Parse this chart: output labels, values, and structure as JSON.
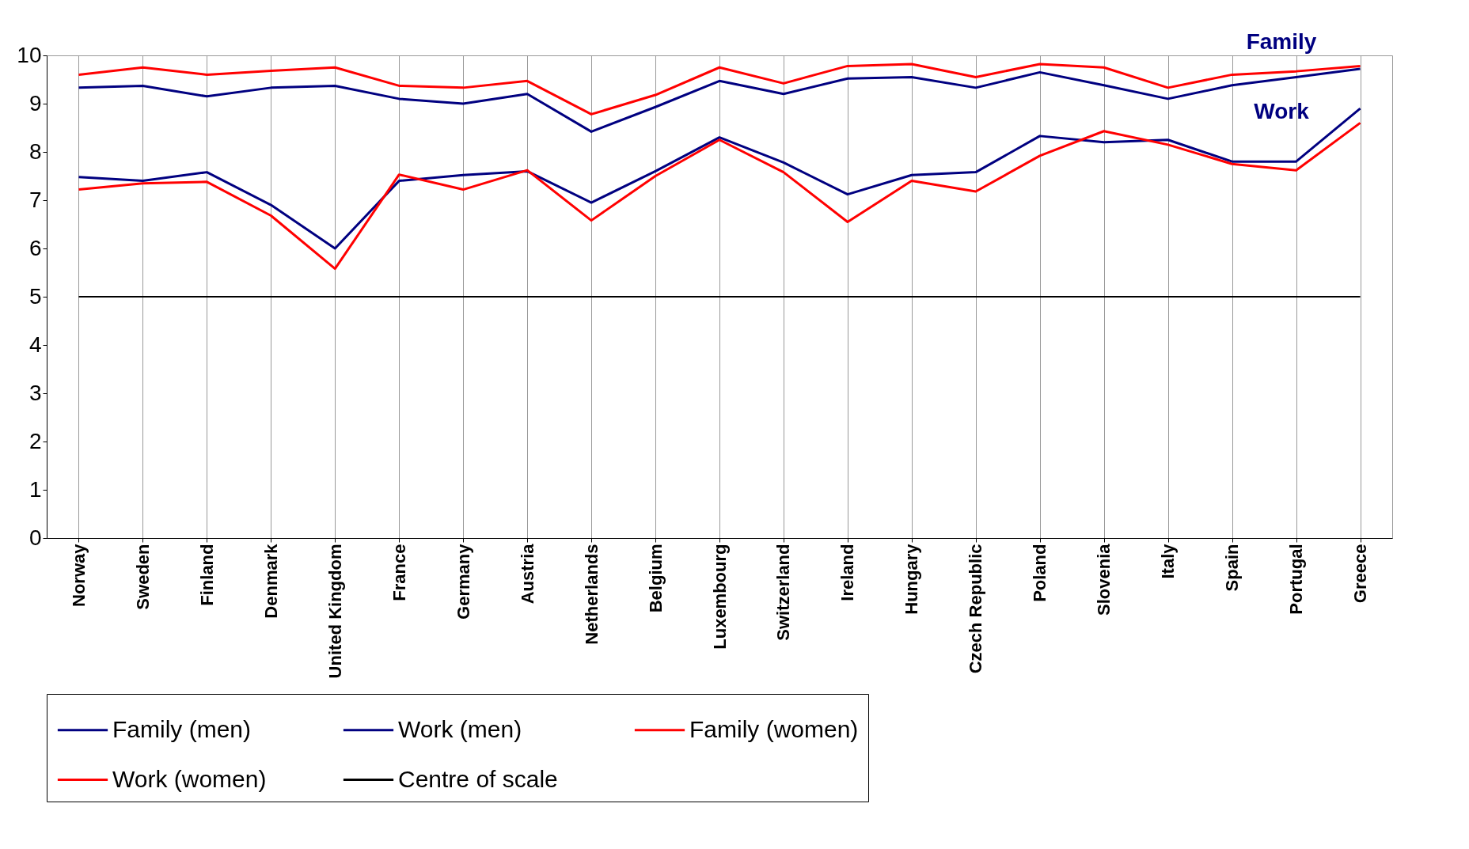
{
  "chart_data": {
    "type": "line",
    "categories": [
      "Norway",
      "Sweden",
      "Finland",
      "Denmark",
      "United Kingdom",
      "France",
      "Germany",
      "Austria",
      "Netherlands",
      "Belgium",
      "Luxembourg",
      "Switzerland",
      "Ireland",
      "Hungary",
      "Czech Republic",
      "Poland",
      "Slovenia",
      "Italy",
      "Spain",
      "Portugal",
      "Greece"
    ],
    "series": [
      {
        "name": "Family (men)",
        "color": "#000080",
        "values": [
          9.33,
          9.37,
          9.15,
          9.33,
          9.37,
          9.1,
          9.0,
          9.2,
          8.42,
          8.93,
          9.47,
          9.2,
          9.52,
          9.55,
          9.33,
          9.65,
          9.38,
          9.1,
          9.38,
          9.55,
          9.72
        ]
      },
      {
        "name": "Work (men)",
        "color": "#000080",
        "values": [
          7.48,
          7.4,
          7.58,
          6.9,
          6.0,
          7.4,
          7.52,
          7.6,
          6.95,
          7.6,
          8.3,
          7.78,
          7.12,
          7.52,
          7.58,
          8.33,
          8.2,
          8.25,
          7.8,
          7.8,
          8.9
        ]
      },
      {
        "name": "Family (women)",
        "color": "#ff0000",
        "values": [
          9.6,
          9.75,
          9.6,
          9.68,
          9.75,
          9.37,
          9.33,
          9.47,
          8.78,
          9.18,
          9.75,
          9.42,
          9.78,
          9.82,
          9.55,
          9.82,
          9.75,
          9.33,
          9.6,
          9.67,
          9.78
        ]
      },
      {
        "name": "Work (women)",
        "color": "#ff0000",
        "values": [
          7.22,
          7.35,
          7.38,
          6.68,
          5.58,
          7.53,
          7.22,
          7.62,
          6.58,
          7.5,
          8.25,
          7.58,
          6.55,
          7.4,
          7.18,
          7.92,
          8.43,
          8.15,
          7.75,
          7.62,
          8.6
        ]
      }
    ],
    "ref_lines": [
      {
        "axis": "y",
        "value": 5,
        "label": "Centre of scale",
        "color": "#000000"
      }
    ],
    "annotations": [
      "Family",
      "Work"
    ],
    "ylim": [
      0,
      10
    ],
    "yticks": [
      0,
      1,
      2,
      3,
      4,
      5,
      6,
      7,
      8,
      9,
      10
    ],
    "grid": "x",
    "legend": "bottom left",
    "marker": "none",
    "line_style": "solid"
  }
}
